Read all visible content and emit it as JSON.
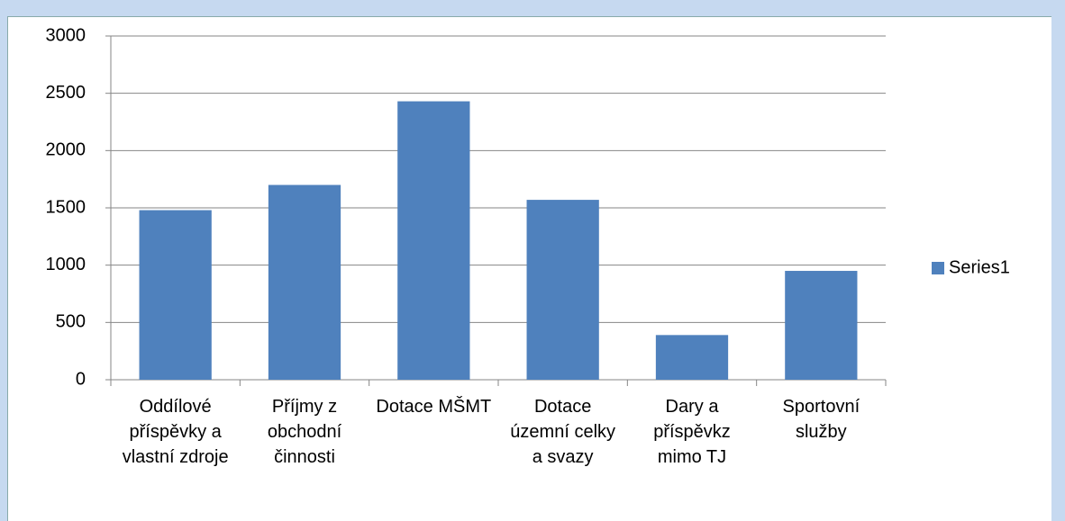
{
  "chart_data": {
    "type": "bar",
    "categories": [
      "Oddílové příspěvky a vlastní zdroje",
      "Příjmy z obchodní činnosti",
      "Dotace MŠMT",
      "Dotace územní celky a svazy",
      "Dary a příspěvkz mimo TJ",
      "Sportovní služby"
    ],
    "series": [
      {
        "name": "Series1",
        "color": "#4f81bd",
        "values": [
          1480,
          1700,
          2430,
          1570,
          390,
          950
        ]
      }
    ],
    "ylim": [
      0,
      3000
    ],
    "yticks": [
      0,
      500,
      1000,
      1500,
      2000,
      2500,
      3000
    ],
    "grid": true,
    "legend": "right"
  }
}
